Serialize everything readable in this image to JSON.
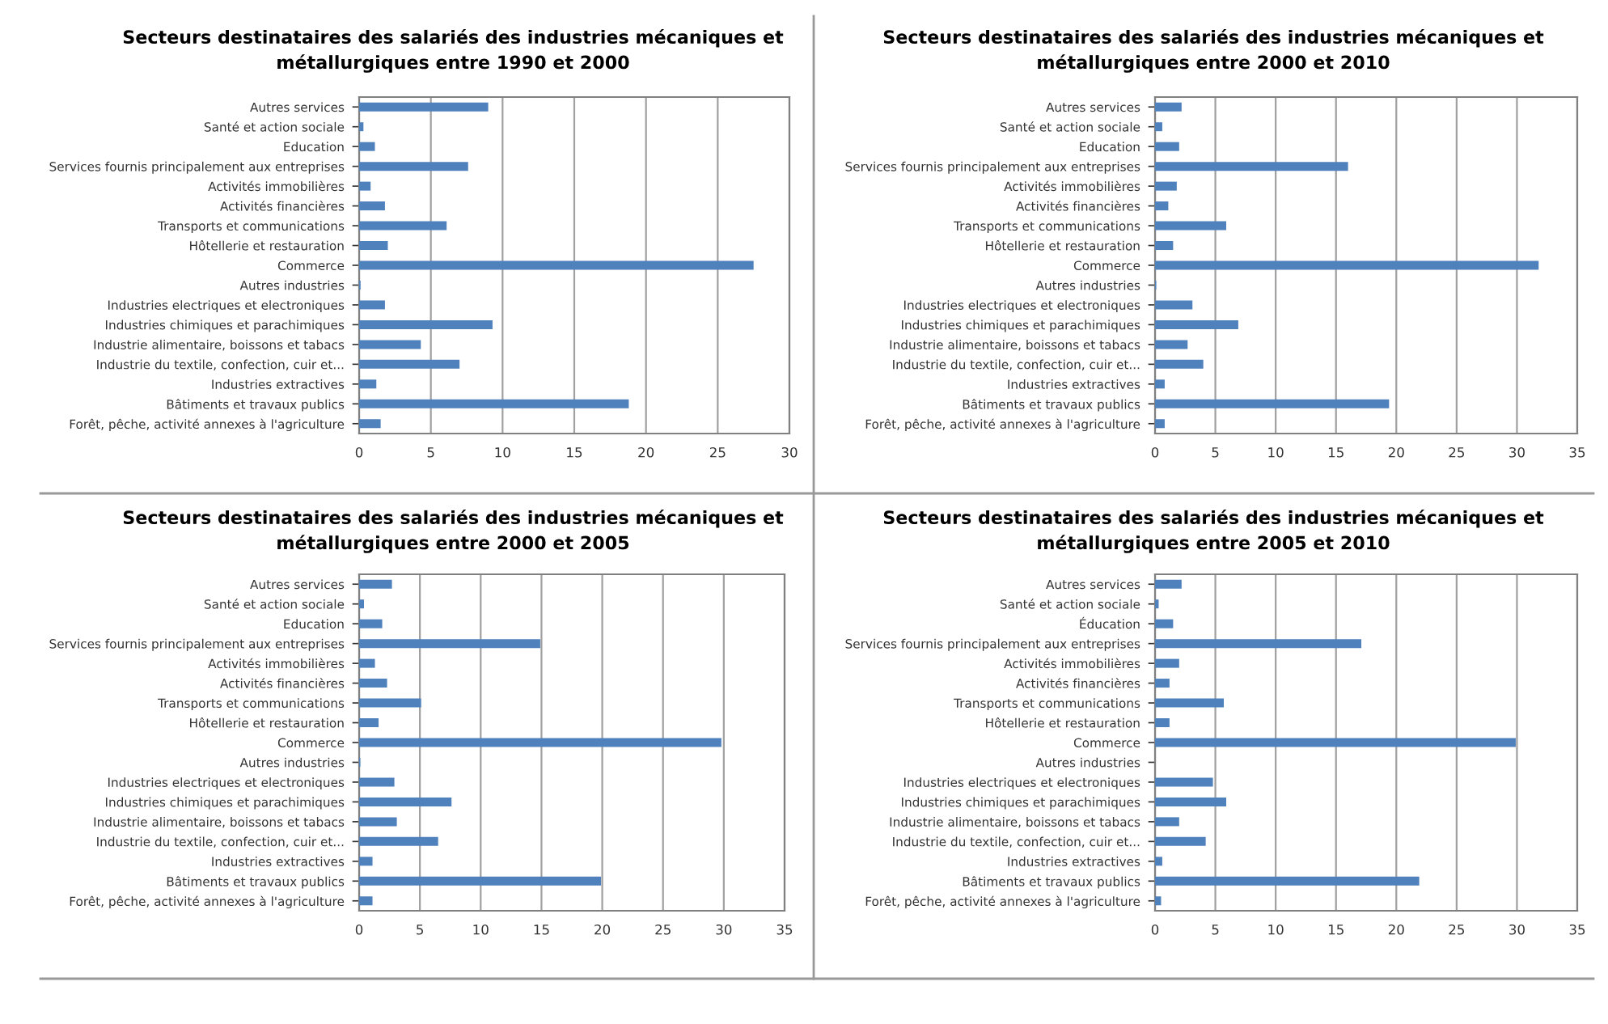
{
  "chart_data": [
    {
      "type": "bar",
      "orientation": "horizontal",
      "title": "Secteurs destinataires des salariés des industries mécaniques et métallurgiques entre 1990 et 2000",
      "categories": [
        "Autres services",
        "Santé et action sociale",
        "Education",
        "Services fournis principalement aux entreprises",
        "Activités immobilières",
        "Activités financières",
        "Transports et communications",
        "Hôtellerie et restauration",
        "Commerce",
        "Autres industries",
        "Industries electriques et electroniques",
        "Industries chimiques et parachimiques",
        "Industrie alimentaire, boissons et tabacs",
        "Industrie du textile, confection, cuir et...",
        "Industries extractives",
        "Bâtiments et travaux publics",
        "Forêt, pêche, activité annexes à l'agriculture"
      ],
      "values": [
        9.0,
        0.3,
        1.1,
        7.6,
        0.8,
        1.8,
        6.1,
        2.0,
        27.5,
        0.1,
        1.8,
        9.3,
        4.3,
        7.0,
        1.2,
        18.8,
        1.5
      ],
      "color": "#4f81bd",
      "xlim": [
        0,
        30
      ],
      "xticks": [
        0,
        5,
        10,
        15,
        20,
        25,
        30
      ],
      "grid": "x"
    },
    {
      "type": "bar",
      "orientation": "horizontal",
      "title": "Secteurs destinataires des salariés des industries mécaniques et métallurgiques entre 2000 et 2010",
      "categories": [
        "Autres services",
        "Santé et action sociale",
        "Education",
        "Services fournis principalement aux entreprises",
        "Activités immobilières",
        "Activités financières",
        "Transports et communications",
        "Hôtellerie et restauration",
        "Commerce",
        "Autres industries",
        "Industries electriques et electroniques",
        "Industries chimiques et parachimiques",
        "Industrie alimentaire, boissons et tabacs",
        "Industrie du textile, confection, cuir et...",
        "Industries extractives",
        "Bâtiments et travaux publics",
        "Forêt, pêche, activité annexes à l'agriculture"
      ],
      "values": [
        2.2,
        0.6,
        2.0,
        16.0,
        1.8,
        1.1,
        5.9,
        1.5,
        31.8,
        0.1,
        3.1,
        6.9,
        2.7,
        4.0,
        0.8,
        19.4,
        0.8
      ],
      "color": "#4f81bd",
      "xlim": [
        0,
        35
      ],
      "xticks": [
        0,
        5,
        10,
        15,
        20,
        25,
        30,
        35
      ],
      "grid": "x"
    },
    {
      "type": "bar",
      "orientation": "horizontal",
      "title": "Secteurs destinataires des salariés des industries mécaniques et métallurgiques entre 2000 et 2005",
      "categories": [
        "Autres services",
        "Santé et action sociale",
        "Education",
        "Services fournis principalement aux entreprises",
        "Activités immobilières",
        "Activités financières",
        "Transports et communications",
        "Hôtellerie et restauration",
        "Commerce",
        "Autres industries",
        "Industries electriques et electroniques",
        "Industries chimiques et parachimiques",
        "Industrie alimentaire, boissons et tabacs",
        "Industrie du textile, confection, cuir et...",
        "Industries extractives",
        "Bâtiments et travaux publics",
        "Forêt, pêche, activité annexes à l'agriculture"
      ],
      "values": [
        2.7,
        0.4,
        1.9,
        14.9,
        1.3,
        2.3,
        5.1,
        1.6,
        29.8,
        0.1,
        2.9,
        7.6,
        3.1,
        6.5,
        1.1,
        19.9,
        1.1
      ],
      "color": "#4f81bd",
      "xlim": [
        0,
        35
      ],
      "xticks": [
        0,
        5,
        10,
        15,
        20,
        25,
        30,
        35
      ],
      "grid": "x"
    },
    {
      "type": "bar",
      "orientation": "horizontal",
      "title": "Secteurs destinataires des salariés des industries mécaniques et métallurgiques entre 2005 et 2010",
      "categories": [
        "Autres services",
        "Santé et action sociale",
        "Éducation",
        "Services fournis principalement aux entreprises",
        "Activités immobilières",
        "Activités financières",
        "Transports et communications",
        "Hôtellerie et restauration",
        "Commerce",
        "Autres industries",
        "Industries electriques et electroniques",
        "Industries chimiques et parachimiques",
        "Industrie alimentaire, boissons et tabacs",
        "Industrie du textile, confection, cuir et...",
        "Industries extractives",
        "Bâtiments et travaux publics",
        "Forêt, pêche, activité annexes à l'agriculture"
      ],
      "values": [
        2.2,
        0.3,
        1.5,
        17.1,
        2.0,
        1.2,
        5.7,
        1.2,
        29.9,
        0.0,
        4.8,
        5.9,
        2.0,
        4.2,
        0.6,
        21.9,
        0.5
      ],
      "color": "#4f81bd",
      "xlim": [
        0,
        35
      ],
      "xticks": [
        0,
        5,
        10,
        15,
        20,
        25,
        30,
        35
      ],
      "grid": "x"
    }
  ]
}
